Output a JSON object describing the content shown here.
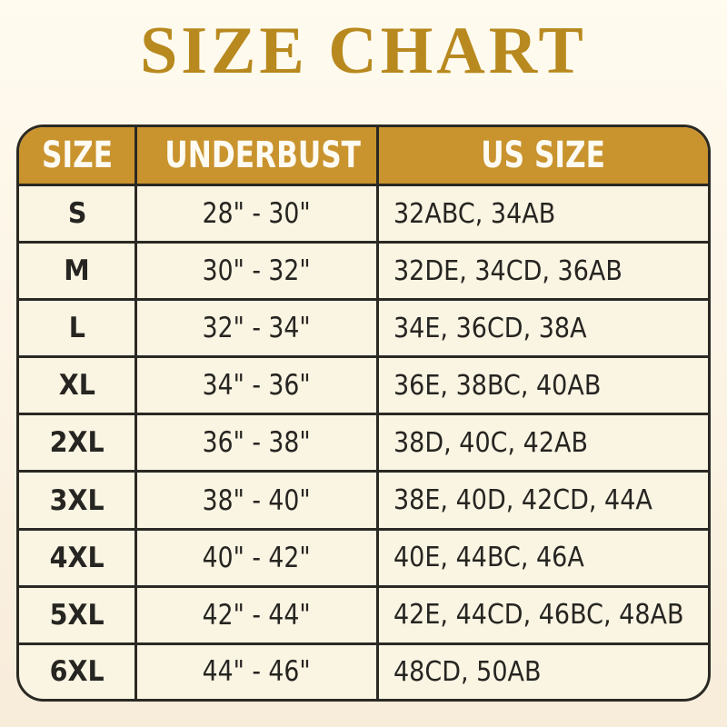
{
  "chart_data": {
    "type": "table",
    "title": "SIZE CHART",
    "columns": [
      "SIZE",
      "UNDERBUST",
      "US SIZE"
    ],
    "rows": [
      [
        "S",
        "28\" - 30\"",
        "32ABC, 34AB"
      ],
      [
        "M",
        "30\" - 32\"",
        "32DE, 34CD, 36AB"
      ],
      [
        "L",
        "32\" - 34\"",
        "34E, 36CD, 38A"
      ],
      [
        "XL",
        "34\" - 36\"",
        "36E, 38BC, 40AB"
      ],
      [
        "2XL",
        "36\" - 38\"",
        "38D, 40C, 42AB"
      ],
      [
        "3XL",
        "38\" - 40\"",
        "38E, 40D, 42CD, 44A"
      ],
      [
        "4XL",
        "40\" - 42\"",
        "40E, 44BC, 46A"
      ],
      [
        "5XL",
        "42\" - 44\"",
        "42E, 44CD, 46BC, 48AB"
      ],
      [
        "6XL",
        "44\" - 46\"",
        "48CD, 50AB"
      ]
    ],
    "layout": {
      "header_position": "top",
      "grid": true,
      "rounded_corners": true
    }
  },
  "colors": {
    "title_gold": "#B8891E",
    "header_gold": "#C9932E",
    "header_text": "#FDFBF2",
    "table_border": "#2B2923",
    "cell_background": "#FAF5E3",
    "body_text": "#272521",
    "page_background_top": "#FFFBEF",
    "page_background_bottom": "#F8ECDA"
  }
}
